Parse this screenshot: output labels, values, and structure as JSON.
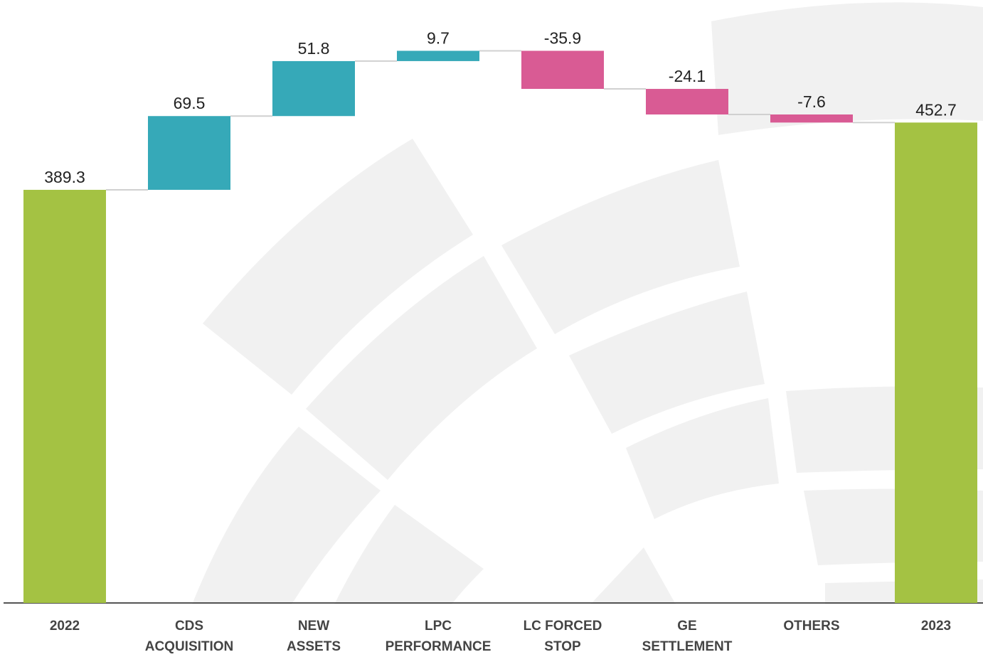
{
  "chart_data": {
    "type": "waterfall",
    "categories": [
      "2022",
      "CDS\nACQUISITION",
      "NEW\nASSETS",
      "LPC\nPERFORMANCE",
      "LC FORCED\nSTOP",
      "GE\nSETTLEMENT",
      "OTHERS",
      "2023"
    ],
    "values": [
      389.3,
      69.5,
      51.8,
      9.7,
      -35.9,
      -24.1,
      -7.6,
      452.7
    ],
    "measure": [
      "total",
      "relative",
      "relative",
      "relative",
      "relative",
      "relative",
      "relative",
      "total"
    ],
    "colors": {
      "total": "#a4c243",
      "increase": "#36a9b8",
      "decrease": "#d95b94"
    }
  }
}
